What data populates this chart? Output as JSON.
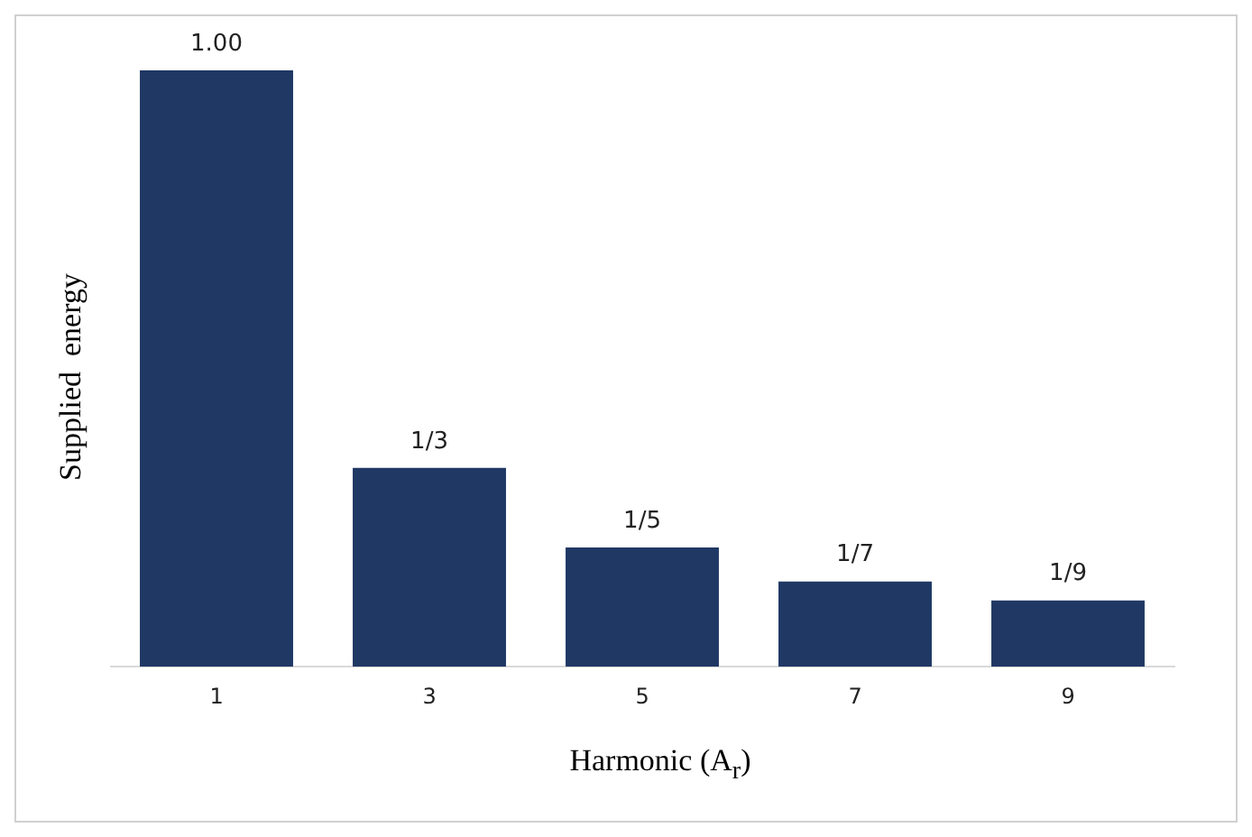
{
  "chart_data": {
    "type": "bar",
    "xlabel": "Harmonic (A$_{r}$)",
    "ylabel": "Supplied  energy",
    "categories": [
      "1",
      "3",
      "5",
      "7",
      "9"
    ],
    "values": [
      1,
      0.3333,
      0.2,
      0.1429,
      0.1111
    ],
    "value_labels": [
      "1.00",
      "1/3",
      "1/5",
      "1/7",
      "1/9"
    ],
    "color": "#1f3864",
    "grid": false,
    "legend": false
  }
}
